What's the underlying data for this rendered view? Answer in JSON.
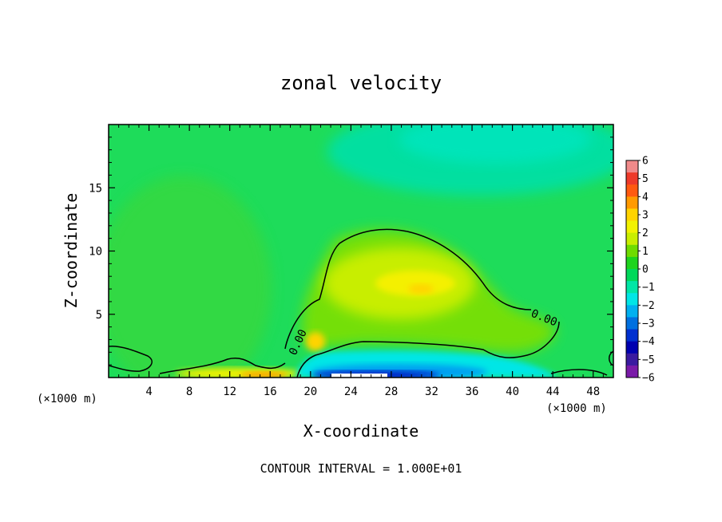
{
  "chart_data": {
    "type": "heatmap",
    "title": "zonal velocity",
    "xlabel": "X-coordinate",
    "ylabel": "Z-coordinate",
    "x_unit_left": "(×1000 m)",
    "x_unit_right": "(×1000 m)",
    "xlim": [
      0,
      50
    ],
    "ylim": [
      0,
      20
    ],
    "x_ticks": [
      "4",
      "8",
      "12",
      "16",
      "20",
      "24",
      "28",
      "32",
      "36",
      "40",
      "44",
      "48"
    ],
    "y_ticks": [
      "5",
      "10",
      "15"
    ],
    "x_tick_values": [
      4,
      8,
      12,
      16,
      20,
      24,
      28,
      32,
      36,
      40,
      44,
      48
    ],
    "y_tick_values": [
      5,
      10,
      15
    ],
    "colorbar": {
      "ticks": [
        "6",
        "5",
        "4",
        "3",
        "2",
        "1",
        "0",
        "−1",
        "−2",
        "−3",
        "−4",
        "−5",
        "−6"
      ],
      "range": [
        -6,
        6
      ],
      "colors": [
        "#f08a8a",
        "#ee3a2a",
        "#ff5a10",
        "#ff9a00",
        "#ffd400",
        "#f2f200",
        "#c9ee00",
        "#6fdc00",
        "#1ed41e",
        "#00d85a",
        "#00e6a6",
        "#00e6e6",
        "#00b0f0",
        "#0070e0",
        "#0030d0",
        "#0000b0",
        "#3a1aa0",
        "#7a1aa8"
      ]
    },
    "background_value": -0.3,
    "features": [
      {
        "kind": "positive_core",
        "x_center": 30,
        "z_center": 7.5,
        "max_value": 2.5
      },
      {
        "kind": "negative_jet",
        "x_range": [
          19,
          40
        ],
        "z_range": [
          0,
          1.5
        ],
        "min_value": -5
      },
      {
        "kind": "surface_positive",
        "x_range": [
          10,
          18
        ],
        "z_range": [
          0,
          0.5
        ],
        "max_value": 3
      },
      {
        "kind": "upper_negative",
        "x_center": 36,
        "z_center": 18.5,
        "min_value": -1
      }
    ],
    "contour_labels": [
      "0.00",
      "0.00"
    ],
    "footer": "CONTOUR INTERVAL = 1.000E+01"
  }
}
